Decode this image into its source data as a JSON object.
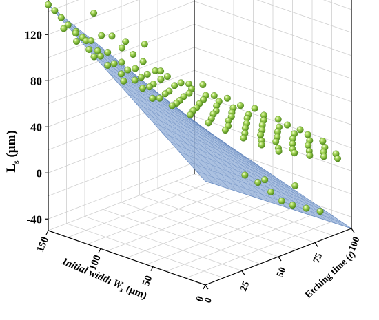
{
  "chart_data": {
    "type": "scatter3d",
    "title": "",
    "axes": {
      "x": {
        "label": "Initial width W",
        "label_sub": "s",
        "label_unit": "(μm)",
        "range": [
          0,
          150
        ],
        "ticks": [
          0,
          50,
          100,
          150
        ]
      },
      "y": {
        "label": "Etching time (",
        "label_italic": "t",
        "label_end": ")",
        "range": [
          0,
          100
        ],
        "ticks": [
          0,
          25,
          50,
          75,
          100
        ]
      },
      "z": {
        "label": "L",
        "label_sub": "s",
        "label_unit": "(μm)",
        "range": [
          -50,
          150
        ],
        "ticks": [
          -40,
          0,
          40,
          80,
          120
        ]
      }
    },
    "grid": true,
    "surface": {
      "type": "fitted-plane",
      "color": "#9cb6dc",
      "z_corners": {
        "x150_y0": 146,
        "x0_y0": 40,
        "x150_y100": -5,
        "x0_y100": -50
      }
    },
    "marker_color": "#8cc63f",
    "points": [
      [
        150,
        0,
        146
      ],
      [
        148,
        3,
        140
      ],
      [
        146,
        6,
        133
      ],
      [
        145,
        10,
        125
      ],
      [
        143,
        14,
        118
      ],
      [
        141,
        17,
        112
      ],
      [
        138,
        2,
        128
      ],
      [
        137,
        20,
        109
      ],
      [
        135,
        8,
        122
      ],
      [
        134,
        25,
        112
      ],
      [
        132,
        13,
        114
      ],
      [
        131,
        30,
        110
      ],
      [
        130,
        5,
        118
      ],
      [
        128,
        18,
        104
      ],
      [
        127,
        34,
        99
      ],
      [
        125,
        10,
        110
      ],
      [
        124,
        22,
        102
      ],
      [
        122,
        38,
        93
      ],
      [
        121,
        15,
        103
      ],
      [
        119,
        28,
        92
      ],
      [
        118,
        42,
        86
      ],
      [
        116,
        7,
        108
      ],
      [
        115,
        20,
        96
      ],
      [
        113,
        33,
        86
      ],
      [
        112,
        46,
        78
      ],
      [
        110,
        12,
        100
      ],
      [
        109,
        25,
        90
      ],
      [
        107,
        37,
        81
      ],
      [
        106,
        50,
        73
      ],
      [
        104,
        17,
        92
      ],
      [
        103,
        30,
        83
      ],
      [
        101,
        42,
        76
      ],
      [
        100,
        55,
        67
      ],
      [
        98,
        22,
        86
      ],
      [
        97,
        34,
        77
      ],
      [
        95,
        47,
        70
      ],
      [
        94,
        58,
        62
      ],
      [
        92,
        10,
        93
      ],
      [
        91,
        27,
        80
      ],
      [
        89,
        39,
        71
      ],
      [
        88,
        52,
        63
      ],
      [
        86,
        62,
        57
      ],
      [
        85,
        18,
        85
      ],
      [
        83,
        32,
        74
      ],
      [
        82,
        44,
        66
      ],
      [
        80,
        56,
        58
      ],
      [
        79,
        66,
        52
      ],
      [
        77,
        24,
        76
      ],
      [
        76,
        37,
        68
      ],
      [
        74,
        49,
        60
      ],
      [
        73,
        60,
        53
      ],
      [
        71,
        70,
        47
      ],
      [
        70,
        14,
        83
      ],
      [
        68,
        29,
        72
      ],
      [
        67,
        42,
        62
      ],
      [
        65,
        54,
        54
      ],
      [
        64,
        64,
        48
      ],
      [
        62,
        74,
        42
      ],
      [
        61,
        21,
        76
      ],
      [
        59,
        34,
        66
      ],
      [
        58,
        47,
        57
      ],
      [
        56,
        58,
        50
      ],
      [
        55,
        68,
        44
      ],
      [
        53,
        78,
        38
      ],
      [
        52,
        27,
        68
      ],
      [
        50,
        40,
        59
      ],
      [
        49,
        51,
        52
      ],
      [
        47,
        62,
        45
      ],
      [
        46,
        72,
        39
      ],
      [
        44,
        82,
        33
      ],
      [
        43,
        33,
        61
      ],
      [
        41,
        45,
        53
      ],
      [
        40,
        56,
        46
      ],
      [
        38,
        66,
        40
      ],
      [
        37,
        76,
        34
      ],
      [
        35,
        86,
        28
      ],
      [
        34,
        38,
        55
      ],
      [
        32,
        50,
        47
      ],
      [
        31,
        60,
        41
      ],
      [
        29,
        70,
        35
      ],
      [
        28,
        80,
        29
      ],
      [
        26,
        90,
        23
      ],
      [
        25,
        44,
        48
      ],
      [
        23,
        55,
        41
      ],
      [
        22,
        64,
        36
      ],
      [
        20,
        74,
        30
      ],
      [
        19,
        84,
        24
      ],
      [
        17,
        94,
        18
      ],
      [
        16,
        50,
        42
      ],
      [
        14,
        60,
        35
      ],
      [
        13,
        69,
        30
      ],
      [
        11,
        79,
        24
      ],
      [
        10,
        88,
        19
      ],
      [
        8,
        56,
        36
      ],
      [
        7,
        66,
        30
      ],
      [
        5,
        75,
        24
      ],
      [
        4,
        84,
        19
      ],
      [
        2,
        92,
        14
      ],
      [
        140,
        24,
        130
      ],
      [
        132,
        40,
        100
      ],
      [
        118,
        54,
        72
      ],
      [
        105,
        64,
        60
      ],
      [
        92,
        72,
        50
      ],
      [
        78,
        80,
        42
      ],
      [
        64,
        86,
        35
      ],
      [
        50,
        92,
        28
      ],
      [
        36,
        96,
        22
      ],
      [
        125,
        48,
        96
      ],
      [
        100,
        70,
        58
      ],
      [
        85,
        76,
        48
      ],
      [
        70,
        84,
        40
      ],
      [
        56,
        90,
        32
      ],
      [
        42,
        95,
        25
      ],
      [
        26,
        99,
        18
      ],
      [
        12,
        98,
        12
      ],
      [
        18,
        40,
        20
      ],
      [
        14,
        46,
        12
      ],
      [
        10,
        52,
        2
      ],
      [
        8,
        58,
        -8
      ],
      [
        6,
        64,
        -14
      ],
      [
        20,
        55,
        8
      ],
      [
        12,
        70,
        -2
      ],
      [
        4,
        72,
        -20
      ],
      [
        2,
        80,
        -26
      ]
    ]
  },
  "x_label_main": "Initial width W",
  "x_label_sub": "s",
  "x_label_unit": "(μm)",
  "y_label_main": "Etching time (",
  "y_label_italic": "t",
  "y_label_end": ")",
  "z_label_main": "L",
  "z_label_sub": "s",
  "z_label_unit": "(μm)"
}
